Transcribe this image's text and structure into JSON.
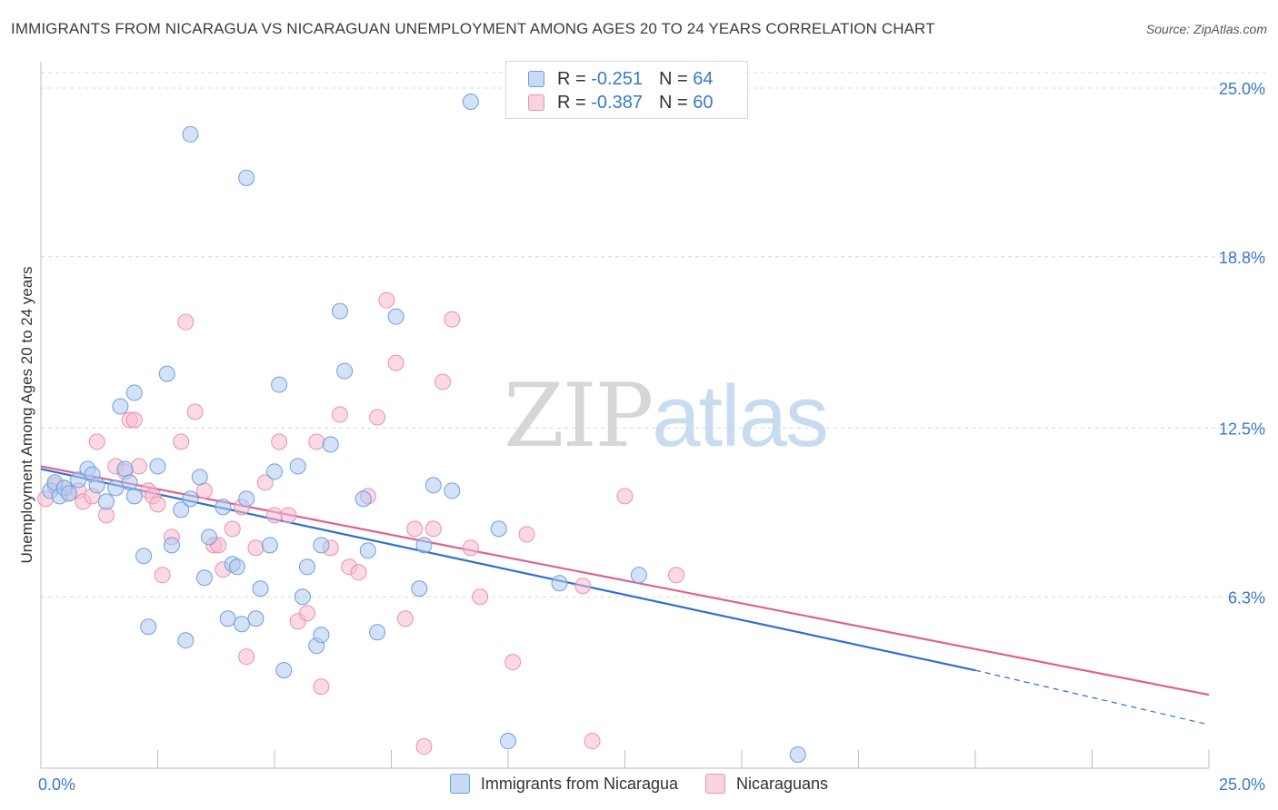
{
  "header": {
    "title": "IMMIGRANTS FROM NICARAGUA VS NICARAGUAN UNEMPLOYMENT AMONG AGES 20 TO 24 YEARS CORRELATION CHART",
    "source": "Source: ZipAtlas.com"
  },
  "watermark": {
    "zip": "ZIP",
    "atlas": "atlas"
  },
  "legend_top": [
    {
      "r_label": "R =",
      "r_value": "-0.251",
      "n_label": "N =",
      "n_value": "64"
    },
    {
      "r_label": "R =",
      "r_value": "-0.387",
      "n_label": "N =",
      "n_value": "60"
    }
  ],
  "legend_bottom": [
    "Immigrants from Nicaragua",
    "Nicaraguans"
  ],
  "colors": {
    "blue_fill": "#aecbf0",
    "blue_stroke": "#6f9ee0",
    "blue_line": "#2f6fd0",
    "pink_fill": "#f7bcd0",
    "pink_stroke": "#ec8fb0",
    "pink_line": "#e0608e",
    "tick_text": "#3a78c9",
    "grid": "#d9d9d9"
  },
  "chart_data": {
    "type": "scatter",
    "title": "IMMIGRANTS FROM NICARAGUA VS NICARAGUAN UNEMPLOYMENT AMONG AGES 20 TO 24 YEARS CORRELATION CHART",
    "xlabel": "",
    "ylabel": "Unemployment Among Ages 20 to 24 years",
    "xlim": [
      0,
      25
    ],
    "ylim": [
      0,
      25
    ],
    "x_tick_labels": [
      {
        "value": 0,
        "label": "0.0%"
      },
      {
        "value": 25,
        "label": "25.0%"
      }
    ],
    "y_tick_labels": [
      {
        "value": 25,
        "label": "25.0%"
      },
      {
        "value": 18.8,
        "label": "18.8%"
      },
      {
        "value": 12.5,
        "label": "12.5%"
      },
      {
        "value": 6.3,
        "label": "6.3%"
      }
    ],
    "grid": true,
    "legend_placement": "top-center",
    "series": [
      {
        "name": "Immigrants from Nicaragua",
        "r": -0.251,
        "n": 64,
        "trend": {
          "x_start": 0,
          "y_start": 11.0,
          "x_end": 20,
          "y_end": 3.6,
          "dashed_to_x": 25,
          "dashed_to_y": 1.6
        },
        "points": [
          [
            0.2,
            10.2
          ],
          [
            0.3,
            10.5
          ],
          [
            0.4,
            10.0
          ],
          [
            0.5,
            10.3
          ],
          [
            0.6,
            10.1
          ],
          [
            0.8,
            10.6
          ],
          [
            1.0,
            11.0
          ],
          [
            1.1,
            10.8
          ],
          [
            1.2,
            10.4
          ],
          [
            1.4,
            9.8
          ],
          [
            1.6,
            10.3
          ],
          [
            1.8,
            11.0
          ],
          [
            1.7,
            13.3
          ],
          [
            1.9,
            10.5
          ],
          [
            2.0,
            10.0
          ],
          [
            2.0,
            13.8
          ],
          [
            2.5,
            11.1
          ],
          [
            2.7,
            14.5
          ],
          [
            2.2,
            7.8
          ],
          [
            2.3,
            5.2
          ],
          [
            2.8,
            8.2
          ],
          [
            3.0,
            9.5
          ],
          [
            3.2,
            9.9
          ],
          [
            3.4,
            10.7
          ],
          [
            3.5,
            7.0
          ],
          [
            3.1,
            4.7
          ],
          [
            3.6,
            8.5
          ],
          [
            3.9,
            9.6
          ],
          [
            4.0,
            5.5
          ],
          [
            3.2,
            23.3
          ],
          [
            4.1,
            7.5
          ],
          [
            4.2,
            7.4
          ],
          [
            4.3,
            5.3
          ],
          [
            4.4,
            9.9
          ],
          [
            4.6,
            5.5
          ],
          [
            4.7,
            6.6
          ],
          [
            4.9,
            8.2
          ],
          [
            5.0,
            10.9
          ],
          [
            5.1,
            14.1
          ],
          [
            5.2,
            3.6
          ],
          [
            5.5,
            11.1
          ],
          [
            5.6,
            6.3
          ],
          [
            5.9,
            4.5
          ],
          [
            5.7,
            7.4
          ],
          [
            6.0,
            4.9
          ],
          [
            6.2,
            11.9
          ],
          [
            6.4,
            16.8
          ],
          [
            6.5,
            14.6
          ],
          [
            6.9,
            9.9
          ],
          [
            7.0,
            8.0
          ],
          [
            7.2,
            5.0
          ],
          [
            7.6,
            16.6
          ],
          [
            8.1,
            6.6
          ],
          [
            8.2,
            8.2
          ],
          [
            8.8,
            10.2
          ],
          [
            4.4,
            21.7
          ],
          [
            6.0,
            8.2
          ],
          [
            9.8,
            8.8
          ],
          [
            11.1,
            6.8
          ],
          [
            12.8,
            7.1
          ],
          [
            9.2,
            24.5
          ],
          [
            8.4,
            10.4
          ],
          [
            10.0,
            1.0
          ],
          [
            16.2,
            0.5
          ]
        ]
      },
      {
        "name": "Nicaraguans",
        "r": -0.387,
        "n": 60,
        "trend": {
          "x_start": 0,
          "y_start": 11.1,
          "x_end": 25,
          "y_end": 2.7
        },
        "points": [
          [
            0.1,
            9.9
          ],
          [
            0.3,
            10.4
          ],
          [
            0.5,
            10.3
          ],
          [
            0.6,
            10.1
          ],
          [
            0.8,
            10.2
          ],
          [
            0.9,
            9.8
          ],
          [
            1.1,
            10.0
          ],
          [
            1.2,
            12.0
          ],
          [
            1.4,
            9.3
          ],
          [
            1.6,
            11.1
          ],
          [
            1.8,
            10.9
          ],
          [
            1.9,
            12.8
          ],
          [
            2.0,
            12.8
          ],
          [
            2.1,
            11.1
          ],
          [
            2.3,
            10.2
          ],
          [
            2.4,
            10.0
          ],
          [
            2.5,
            9.7
          ],
          [
            2.6,
            7.1
          ],
          [
            2.8,
            8.5
          ],
          [
            3.0,
            12.0
          ],
          [
            3.1,
            16.4
          ],
          [
            3.3,
            13.1
          ],
          [
            3.5,
            10.2
          ],
          [
            3.7,
            8.2
          ],
          [
            3.8,
            8.2
          ],
          [
            3.9,
            7.3
          ],
          [
            4.1,
            8.8
          ],
          [
            4.3,
            9.6
          ],
          [
            4.4,
            4.1
          ],
          [
            4.6,
            8.1
          ],
          [
            4.8,
            10.5
          ],
          [
            5.0,
            9.3
          ],
          [
            5.1,
            12.0
          ],
          [
            5.3,
            9.3
          ],
          [
            5.5,
            5.4
          ],
          [
            5.7,
            5.7
          ],
          [
            5.9,
            12.0
          ],
          [
            6.0,
            3.0
          ],
          [
            6.2,
            8.1
          ],
          [
            6.4,
            13.0
          ],
          [
            6.6,
            7.4
          ],
          [
            6.8,
            7.2
          ],
          [
            7.0,
            10.0
          ],
          [
            7.2,
            12.9
          ],
          [
            7.4,
            17.2
          ],
          [
            7.6,
            14.9
          ],
          [
            7.8,
            5.5
          ],
          [
            8.0,
            8.8
          ],
          [
            8.2,
            0.8
          ],
          [
            8.4,
            8.8
          ],
          [
            8.6,
            14.2
          ],
          [
            8.8,
            16.5
          ],
          [
            9.2,
            8.1
          ],
          [
            9.4,
            6.3
          ],
          [
            10.1,
            3.9
          ],
          [
            10.4,
            8.6
          ],
          [
            11.6,
            6.7
          ],
          [
            11.8,
            1.0
          ],
          [
            12.5,
            10.0
          ],
          [
            13.6,
            7.1
          ]
        ]
      }
    ]
  }
}
